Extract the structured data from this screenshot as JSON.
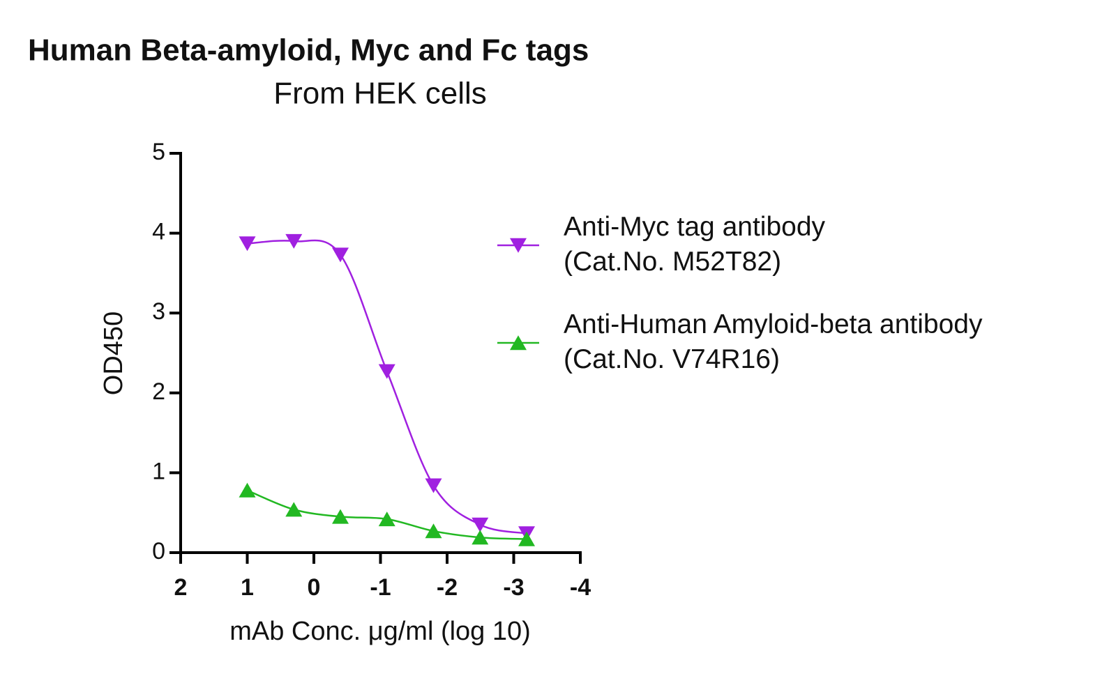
{
  "chart_data": {
    "type": "line",
    "title": "Human Beta-amyloid, Myc and Fc tags",
    "subtitle": "From HEK cells",
    "x_label": "mAb Conc. μg/ml (log 10)",
    "y_label": "OD450",
    "x": [
      1,
      0.301,
      -0.398,
      -1.097,
      -1.796,
      -2.495,
      -3.194
    ],
    "series": [
      {
        "name": "Anti-Myc tag antibody\n(Cat.No. M52T82)",
        "color": "#a020e0",
        "marker": "down",
        "values": [
          3.87,
          3.9,
          3.73,
          2.27,
          0.84,
          0.35,
          0.24
        ]
      },
      {
        "name": "Anti-Human Amyloid-beta antibody\n(Cat.No. V74R16)",
        "color": "#22b822",
        "marker": "up",
        "values": [
          0.78,
          0.54,
          0.45,
          0.42,
          0.27,
          0.19,
          0.17
        ]
      }
    ],
    "xlim": [
      2,
      -4
    ],
    "xticks": [
      2,
      1,
      0,
      -1,
      -2,
      -3,
      -4
    ],
    "ylim": [
      0,
      5
    ],
    "yticks": [
      0,
      1,
      2,
      3,
      4,
      5
    ],
    "legend": "right"
  }
}
